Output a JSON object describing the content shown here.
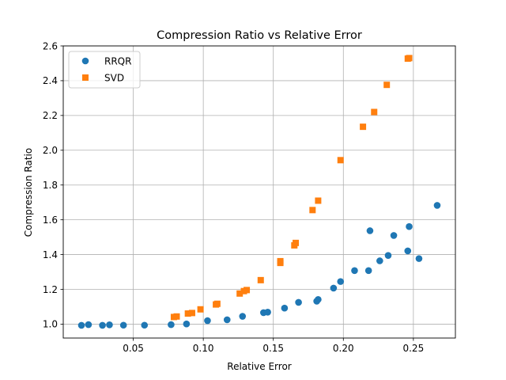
{
  "chart_data": {
    "type": "scatter",
    "title": "Compression Ratio vs Relative Error",
    "xlabel": "Relative Error",
    "ylabel": "Compression Ratio",
    "xlim": [
      0.0,
      0.28
    ],
    "ylim": [
      0.92,
      2.6
    ],
    "xticks": [
      {
        "value": 0.05,
        "label": "0.05"
      },
      {
        "value": 0.1,
        "label": "0.10"
      },
      {
        "value": 0.15,
        "label": "0.15"
      },
      {
        "value": 0.2,
        "label": "0.20"
      },
      {
        "value": 0.25,
        "label": "0.25"
      }
    ],
    "yticks": [
      {
        "value": 1.0,
        "label": "1.0"
      },
      {
        "value": 1.2,
        "label": "1.2"
      },
      {
        "value": 1.4,
        "label": "1.4"
      },
      {
        "value": 1.6,
        "label": "1.6"
      },
      {
        "value": 1.8,
        "label": "1.8"
      },
      {
        "value": 2.0,
        "label": "2.0"
      },
      {
        "value": 2.2,
        "label": "2.2"
      },
      {
        "value": 2.4,
        "label": "2.4"
      },
      {
        "value": 2.6,
        "label": "2.6"
      }
    ],
    "grid": true,
    "legend_position": "top-left",
    "series": [
      {
        "name": "RRQR",
        "marker": "circle",
        "color": "#1f77b4",
        "points": [
          [
            0.013,
            0.993
          ],
          [
            0.018,
            0.997
          ],
          [
            0.028,
            0.993
          ],
          [
            0.033,
            0.996
          ],
          [
            0.043,
            0.994
          ],
          [
            0.058,
            0.994
          ],
          [
            0.077,
            0.997
          ],
          [
            0.088,
            1.001
          ],
          [
            0.103,
            1.02
          ],
          [
            0.117,
            1.025
          ],
          [
            0.128,
            1.045
          ],
          [
            0.143,
            1.066
          ],
          [
            0.146,
            1.069
          ],
          [
            0.158,
            1.092
          ],
          [
            0.168,
            1.125
          ],
          [
            0.181,
            1.132
          ],
          [
            0.182,
            1.142
          ],
          [
            0.193,
            1.207
          ],
          [
            0.198,
            1.245
          ],
          [
            0.208,
            1.308
          ],
          [
            0.218,
            1.308
          ],
          [
            0.219,
            1.537
          ],
          [
            0.226,
            1.364
          ],
          [
            0.232,
            1.395
          ],
          [
            0.236,
            1.51
          ],
          [
            0.246,
            1.421
          ],
          [
            0.247,
            1.561
          ],
          [
            0.254,
            1.377
          ],
          [
            0.267,
            1.683
          ]
        ]
      },
      {
        "name": "SVD",
        "marker": "square",
        "color": "#ff7f0e",
        "points": [
          [
            0.079,
            1.041
          ],
          [
            0.081,
            1.044
          ],
          [
            0.089,
            1.061
          ],
          [
            0.092,
            1.064
          ],
          [
            0.098,
            1.085
          ],
          [
            0.109,
            1.113
          ],
          [
            0.11,
            1.117
          ],
          [
            0.126,
            1.176
          ],
          [
            0.129,
            1.19
          ],
          [
            0.131,
            1.196
          ],
          [
            0.141,
            1.253
          ],
          [
            0.155,
            1.352
          ],
          [
            0.155,
            1.362
          ],
          [
            0.165,
            1.453
          ],
          [
            0.166,
            1.467
          ],
          [
            0.178,
            1.656
          ],
          [
            0.182,
            1.71
          ],
          [
            0.198,
            1.943
          ],
          [
            0.214,
            2.135
          ],
          [
            0.222,
            2.22
          ],
          [
            0.231,
            2.376
          ],
          [
            0.246,
            2.527
          ],
          [
            0.247,
            2.53
          ]
        ]
      }
    ]
  }
}
